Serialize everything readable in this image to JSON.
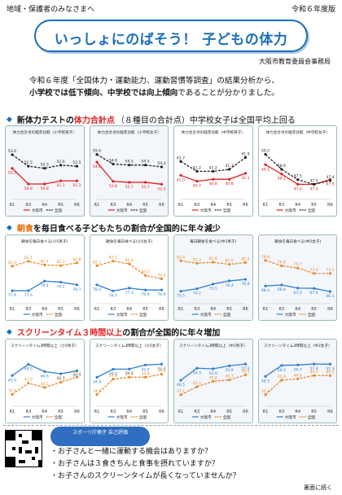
{
  "header": {
    "left": "地域・保護者のみなさまへ",
    "right": "令和６年度版"
  },
  "title": "いっしょにのばそう！ 子どもの体力",
  "org": "大阪市教育委員会事務局",
  "intro": {
    "line1": "令和６年度「全国体力・運動能力、運動習慣等調査」の結果分析から、",
    "line2_a": "小学校では低下傾向、中学校では向上傾向",
    "line2_b": "であることが分かりました。"
  },
  "sec1": {
    "mark": "◆",
    "a": "新体力テストの",
    "b": "体力合計点",
    "c": "（８種目の合計点）中学校女子は全国平均上回る"
  },
  "sec2": {
    "mark": "◆",
    "a": "朝食",
    "b": "を毎日食べる子どもたちの割合が全国的に年々減少"
  },
  "sec3": {
    "mark": "◆",
    "a": "スクリーンタイム３時間以上",
    "b": "の割合が全国的に年々増加"
  },
  "legend": {
    "osaka": "大阪市",
    "zenkoku": "全国"
  },
  "colors": {
    "osaka": "#e02020",
    "zenkoku": "#222222",
    "osaka2": "#2f7fd0",
    "zenkoku2": "#e8892a"
  },
  "chart_data": [
    {
      "type": "line",
      "title": "体力合計点の経年比較（小学校男子）",
      "categories": [
        "R1",
        "R3",
        "R4",
        "R5",
        "R6"
      ],
      "series": [
        {
          "name": "大阪市",
          "values": [
            52.3,
            50.8,
            50.8,
            51.1,
            51.1
          ]
        },
        {
          "name": "全国",
          "values": [
            53.6,
            52.5,
            52.3,
            52.6,
            52.5
          ]
        }
      ]
    },
    {
      "type": "line",
      "title": "体力合計点の経年比較（小学校女子）",
      "categories": [
        "R1",
        "R3",
        "R4",
        "R5",
        "R6"
      ],
      "series": [
        {
          "name": "大阪市",
          "values": [
            54.8,
            52.8,
            52.7,
            52.7,
            52.5
          ]
        },
        {
          "name": "全国",
          "values": [
            55.6,
            54.6,
            54.5,
            54.5,
            54.3
          ]
        }
      ]
    },
    {
      "type": "line",
      "title": "体力合計点の経年比較（中学校男子）",
      "categories": [
        "R1",
        "R3",
        "R4",
        "R5",
        "R6"
      ],
      "series": [
        {
          "name": "大阪市",
          "values": [
            41.0,
            40.7,
            40.8,
            40.8,
            41.1
          ]
        },
        {
          "name": "全国",
          "values": [
            41.7,
            41.2,
            41.2,
            41.3,
            41.9
          ]
        }
      ]
    },
    {
      "type": "line",
      "title": "体力合計点の経年比較（中学校女子）",
      "categories": [
        "R1",
        "R3",
        "R4",
        "R5",
        "R6"
      ],
      "series": [
        {
          "name": "大阪市",
          "values": [
            49.1,
            48.1,
            47.0,
            47.0,
            47.5
          ]
        },
        {
          "name": "全国",
          "values": [
            50.2,
            48.6,
            47.5,
            47.0,
            47.4
          ]
        }
      ]
    },
    {
      "type": "line",
      "title": "朝食を毎日食べる(小5男子)",
      "categories": [
        "R1",
        "R3",
        "R4",
        "R5",
        "R6"
      ],
      "series": [
        {
          "name": "大阪市",
          "values": [
            77.6,
            77.6,
            79.4,
            79.2,
            78.7
          ]
        },
        {
          "name": "全国",
          "values": [
            82.2,
            83.1,
            82.4,
            82.3,
            82.8
          ]
        }
      ]
    },
    {
      "type": "line",
      "title": "朝食を毎日食べる(小5女子)",
      "categories": [
        "R1",
        "R3",
        "R4",
        "R5",
        "R6"
      ],
      "series": [
        {
          "name": "大阪市",
          "values": [
            78.0,
            76.7,
            77.3,
            76.9,
            76.9
          ]
        },
        {
          "name": "全国",
          "values": [
            82.1,
            83.1,
            82.5,
            80.0,
            79.3
          ]
        }
      ]
    },
    {
      "type": "line",
      "title": "毎日朝食を食べる(中2男子)",
      "categories": [
        "R1",
        "R3",
        "R4",
        "R5",
        "R6"
      ],
      "series": [
        {
          "name": "大阪市",
          "values": [
            73.5,
            74.2,
            75.5,
            76.4,
            76.8
          ]
        },
        {
          "name": "全国",
          "values": [
            82.0,
            81.3,
            81.6,
            81.0,
            81.5
          ]
        }
      ]
    },
    {
      "type": "line",
      "title": "朝食を毎日食べる(中2女子)",
      "categories": [
        "R1",
        "R3",
        "R4",
        "R5",
        "R6"
      ],
      "series": [
        {
          "name": "大阪市",
          "values": [
            68.4,
            68.8,
            67.5,
            67.4,
            66.1
          ]
        },
        {
          "name": "全国",
          "values": [
            78.8,
            76.6,
            75.7,
            73.5,
            73.5
          ]
        }
      ]
    },
    {
      "type": "line",
      "title": "スクリーンタイム3時間以上（小5男子）",
      "categories": [
        "R1",
        "R3",
        "R4",
        "R5",
        "R6"
      ],
      "series": [
        {
          "name": "大阪市",
          "values": [
            45.0,
            49.5,
            46.6,
            45.7,
            46.9
          ]
        },
        {
          "name": "全国",
          "values": [
            37.4,
            41.9,
            40.2,
            42.3,
            44.4
          ]
        }
      ]
    },
    {
      "type": "line",
      "title": "スクリーンタイム3時間以上（小5女子）",
      "categories": [
        "R1",
        "R3",
        "R4",
        "R5",
        "R6"
      ],
      "series": [
        {
          "name": "大阪市",
          "values": [
            34.8,
            39.5,
            39.6,
            41.9,
            42.4
          ]
        },
        {
          "name": "全国",
          "values": [
            24.9,
            33.8,
            34.9,
            34.9,
            36.6
          ]
        }
      ]
    },
    {
      "type": "line",
      "title": "スクリーンタイム3時間以上（中2男子）",
      "categories": [
        "R1",
        "R3",
        "R4",
        "R5",
        "R6"
      ],
      "series": [
        {
          "name": "大阪市",
          "values": [
            46.5,
            54.3,
            53.9,
            55.9,
            57.0
          ]
        },
        {
          "name": "全国",
          "values": [
            37.1,
            42.3,
            45.8,
            46.7,
            50.0
          ]
        }
      ]
    },
    {
      "type": "line",
      "title": "スクリーンタイム3時間以上（中2女子）",
      "categories": [
        "R1",
        "R3",
        "R4",
        "R5",
        "R6"
      ],
      "series": [
        {
          "name": "大阪市",
          "values": [
            48.5,
            56.4,
            56.7,
            57.4,
            57.3
          ]
        },
        {
          "name": "全国",
          "values": [
            35.4,
            45.9,
            46.8,
            49.2,
            49.1
          ]
        }
      ]
    }
  ],
  "bottom": {
    "bubble": "スポーツ庁冊子 自己評価",
    "q1": "・お子さんと一緒に運動する機会はありますか？",
    "q2": "・お子さんは３食きちんと食事を摂れていますか？",
    "q3": "・お子さんのスクリーンタイムが長くなっていませんか？",
    "next": "裏面に続く"
  }
}
